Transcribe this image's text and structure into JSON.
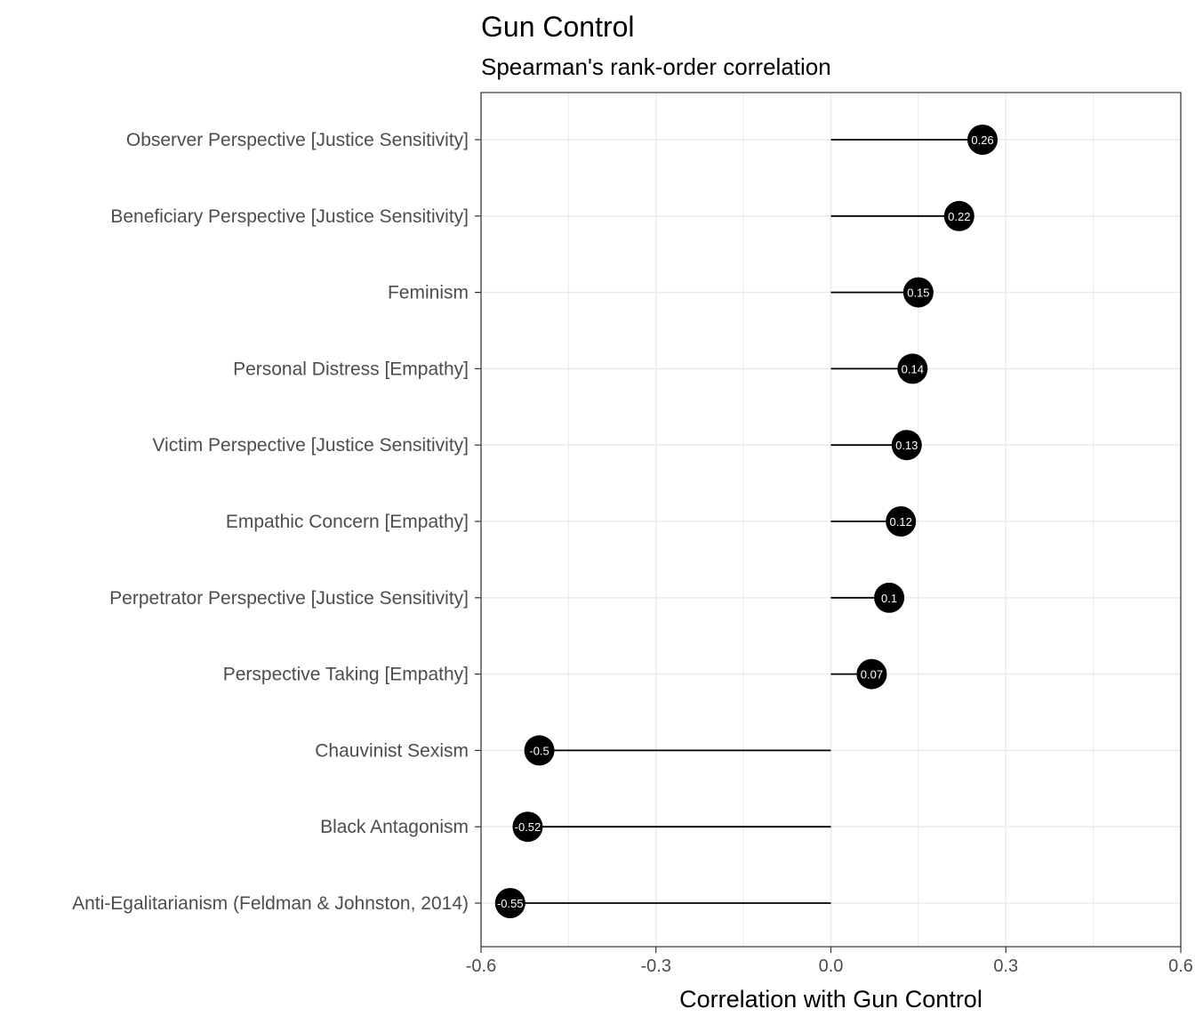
{
  "chart_data": {
    "type": "lollipop",
    "title": "Gun Control",
    "subtitle": "Spearman's rank-order correlation",
    "xlabel": "Correlation with Gun Control",
    "ylabel": "",
    "xlim": [
      -0.6,
      0.6
    ],
    "x_ticks": [
      -0.6,
      -0.3,
      0.0,
      0.3,
      0.6
    ],
    "x_tick_labels": [
      "-0.6",
      "-0.3",
      "0.0",
      "0.3",
      "0.6"
    ],
    "grid": true,
    "legend": "none",
    "categories": [
      "Observer Perspective [Justice Sensitivity]",
      "Beneficiary Perspective [Justice Sensitivity]",
      "Feminism",
      "Personal Distress [Empathy]",
      "Victim Perspective [Justice Sensitivity]",
      "Empathic Concern [Empathy]",
      "Perpetrator Perspective [Justice Sensitivity]",
      "Perspective Taking [Empathy]",
      "Chauvinist Sexism",
      "Black Antagonism",
      "Anti-Egalitarianism (Feldman & Johnston, 2014)"
    ],
    "values": [
      0.26,
      0.22,
      0.15,
      0.14,
      0.13,
      0.12,
      0.1,
      0.07,
      -0.5,
      -0.52,
      -0.55
    ],
    "value_labels": [
      "0.26",
      "0.22",
      "0.15",
      "0.14",
      "0.13",
      "0.12",
      "0.1",
      "0.07",
      "-0.5",
      "-0.52",
      "-0.55"
    ],
    "colors": {
      "point": "#000000",
      "segment": "#000000",
      "grid": "#ebebeb",
      "label": "#ffffff"
    }
  }
}
